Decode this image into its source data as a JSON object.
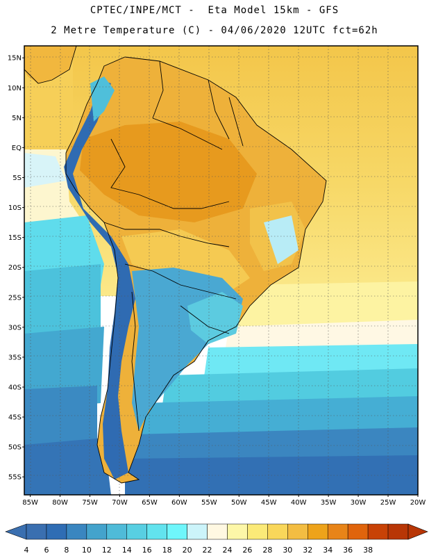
{
  "header": {
    "line1": "CPTEC/INPE/MCT -  Eta Model 15km - GFS",
    "line2": "2 Metre Temperature (C) - 04/06/2020 12UTC fct=62h"
  },
  "map": {
    "variable": "2 Metre Temperature",
    "units": "C",
    "extent": {
      "lon_min": -86,
      "lon_max": -20,
      "lat_min": -58,
      "lat_max": 17
    },
    "lat_labels": [
      "15N",
      "10N",
      "5N",
      "EQ",
      "5S",
      "10S",
      "15S",
      "20S",
      "25S",
      "30S",
      "35S",
      "40S",
      "45S",
      "50S",
      "55S"
    ],
    "lat_values": [
      15,
      10,
      5,
      0,
      -5,
      -10,
      -15,
      -20,
      -25,
      -30,
      -35,
      -40,
      -45,
      -50,
      -55
    ],
    "lon_labels": [
      "85W",
      "80W",
      "75W",
      "70W",
      "65W",
      "60W",
      "55W",
      "50W",
      "45W",
      "40W",
      "35W",
      "30W",
      "25W",
      "20W"
    ],
    "lon_values": [
      -85,
      -80,
      -75,
      -70,
      -65,
      -60,
      -55,
      -50,
      -45,
      -40,
      -35,
      -30,
      -25,
      -20
    ]
  },
  "colorbar": {
    "labels": [
      "4",
      "6",
      "8",
      "10",
      "12",
      "14",
      "16",
      "18",
      "20",
      "22",
      "24",
      "26",
      "28",
      "30",
      "32",
      "34",
      "36",
      "38"
    ],
    "colors": [
      "#3a6fb0",
      "#2f6db4",
      "#3a86c0",
      "#44a3cc",
      "#4fbbd8",
      "#58cfe2",
      "#62e3ee",
      "#6ff6fb",
      "#ccf4fa",
      "#fff8e2",
      "#fdf7a8",
      "#fbea78",
      "#f9d75a",
      "#f3bd42",
      "#eea31a",
      "#e88418",
      "#e0640c",
      "#c84206",
      "#b83606"
    ]
  }
}
